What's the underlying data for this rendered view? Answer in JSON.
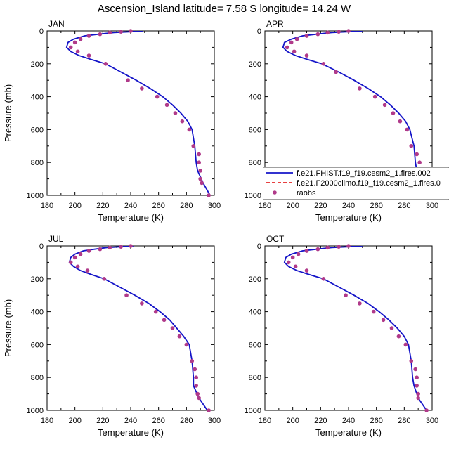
{
  "title": "Ascension_Island  latitude= 7.58 S longitude= 14.24 W",
  "xlabel": "Temperature (K)",
  "ylabel": "Pressure (mb)",
  "colors": {
    "model1": "#1414c8",
    "model2": "#e00000",
    "obs": "#b03a8a"
  },
  "legend": {
    "items": [
      {
        "label": "f.e21.FHIST.f19_f19.cesm2_1.fires.002",
        "style": "solid-line"
      },
      {
        "label": "f.e21.F2000climo.f19_f19.cesm2_1.fires.0",
        "style": "dashed-line"
      },
      {
        "label": "raobs",
        "style": "marker"
      }
    ]
  },
  "chart_data": [
    {
      "type": "line",
      "panel": "JAN",
      "xlim": [
        180,
        300
      ],
      "ylim": [
        1000,
        0
      ],
      "xticks": [
        180,
        200,
        220,
        240,
        260,
        280,
        300
      ],
      "yticks": [
        0,
        200,
        400,
        600,
        800,
        1000
      ],
      "series": [
        {
          "name": "f.e21.FHIST.f19_f19.cesm2_1.fires.002",
          "x": [
            249,
            240,
            228,
            217,
            207,
            199,
            195,
            194,
            197,
            203,
            212,
            222,
            233,
            244,
            254,
            263,
            270,
            276,
            281,
            284,
            286,
            287,
            288,
            292,
            297
          ],
          "y": [
            0,
            5,
            10,
            20,
            30,
            50,
            70,
            100,
            125,
            150,
            175,
            200,
            250,
            300,
            350,
            400,
            450,
            500,
            550,
            600,
            700,
            800,
            850,
            925,
            1000
          ]
        },
        {
          "name": "raobs",
          "mode": "markers",
          "x": [
            240,
            233,
            225,
            218,
            210,
            204,
            200,
            197,
            202,
            210,
            222,
            238,
            248,
            259,
            266,
            272,
            277,
            282,
            285,
            289,
            289,
            290,
            290,
            291,
            296
          ],
          "y": [
            0,
            5,
            10,
            20,
            30,
            50,
            70,
            100,
            125,
            150,
            200,
            300,
            350,
            400,
            450,
            500,
            550,
            600,
            700,
            750,
            800,
            850,
            900,
            925,
            1000
          ]
        }
      ]
    },
    {
      "type": "line",
      "panel": "APR",
      "xlim": [
        180,
        300
      ],
      "ylim": [
        1000,
        0
      ],
      "xticks": [
        180,
        200,
        220,
        240,
        260,
        280,
        300
      ],
      "yticks": [
        0,
        200,
        400,
        600,
        800,
        1000
      ],
      "series": [
        {
          "name": "f.e21.FHIST.f19_f19.cesm2_1.fires.002",
          "x": [
            250,
            240,
            228,
            217,
            207,
            199,
            194,
            193,
            196,
            202,
            211,
            221,
            233,
            244,
            254,
            263,
            270,
            276,
            281,
            284,
            287,
            288,
            289,
            293,
            299
          ],
          "y": [
            0,
            5,
            10,
            20,
            30,
            50,
            70,
            100,
            125,
            150,
            175,
            200,
            250,
            300,
            350,
            400,
            450,
            500,
            550,
            600,
            700,
            800,
            850,
            925,
            1000
          ]
        },
        {
          "name": "raobs",
          "mode": "markers",
          "x": [
            240,
            233,
            225,
            218,
            210,
            203,
            199,
            196,
            201,
            210,
            222,
            231,
            248,
            259,
            266,
            272,
            277,
            282,
            285,
            289,
            291,
            292
          ],
          "y": [
            0,
            5,
            10,
            20,
            30,
            50,
            70,
            100,
            125,
            150,
            200,
            250,
            350,
            400,
            450,
            500,
            550,
            600,
            700,
            750,
            800,
            850
          ]
        }
      ]
    },
    {
      "type": "line",
      "panel": "JUL",
      "xlim": [
        180,
        300
      ],
      "ylim": [
        1000,
        0
      ],
      "xticks": [
        180,
        200,
        220,
        240,
        260,
        280,
        300
      ],
      "yticks": [
        0,
        200,
        400,
        600,
        800,
        1000
      ],
      "series": [
        {
          "name": "f.e21.FHIST.f19_f19.cesm2_1.fires.002",
          "x": [
            242,
            233,
            223,
            214,
            206,
            200,
            197,
            196,
            199,
            204,
            212,
            221,
            232,
            243,
            253,
            261,
            268,
            273,
            278,
            282,
            284,
            285,
            285,
            289,
            295
          ],
          "y": [
            0,
            5,
            10,
            20,
            30,
            50,
            70,
            100,
            125,
            150,
            175,
            200,
            250,
            300,
            350,
            400,
            450,
            500,
            550,
            600,
            700,
            800,
            850,
            925,
            1000
          ]
        },
        {
          "name": "raobs",
          "mode": "markers",
          "x": [
            240,
            233,
            225,
            218,
            210,
            204,
            200,
            197,
            202,
            209,
            221,
            237,
            248,
            258,
            264,
            270,
            275,
            280,
            284,
            286,
            287,
            287,
            288,
            289,
            296
          ],
          "y": [
            0,
            5,
            10,
            20,
            30,
            50,
            70,
            100,
            125,
            150,
            200,
            300,
            350,
            400,
            450,
            500,
            550,
            600,
            700,
            750,
            800,
            850,
            900,
            925,
            1000
          ]
        }
      ]
    },
    {
      "type": "line",
      "panel": "OCT",
      "xlim": [
        180,
        300
      ],
      "ylim": [
        1000,
        0
      ],
      "xticks": [
        180,
        200,
        220,
        240,
        260,
        280,
        300
      ],
      "yticks": [
        0,
        200,
        400,
        600,
        800,
        1000
      ],
      "series": [
        {
          "name": "f.e21.FHIST.f19_f19.cesm2_1.fires.002",
          "x": [
            250,
            240,
            228,
            217,
            207,
            199,
            195,
            194,
            197,
            203,
            212,
            222,
            233,
            244,
            254,
            262,
            269,
            275,
            280,
            283,
            285,
            286,
            287,
            290,
            296
          ],
          "y": [
            0,
            5,
            10,
            20,
            30,
            50,
            70,
            100,
            125,
            150,
            175,
            200,
            250,
            300,
            350,
            400,
            450,
            500,
            550,
            600,
            700,
            800,
            850,
            925,
            1000
          ]
        },
        {
          "name": "raobs",
          "mode": "markers",
          "x": [
            240,
            233,
            225,
            218,
            210,
            204,
            200,
            197,
            202,
            210,
            222,
            238,
            248,
            258,
            265,
            271,
            276,
            281,
            285,
            288,
            289,
            289,
            290,
            290,
            296
          ],
          "y": [
            0,
            5,
            10,
            20,
            30,
            50,
            70,
            100,
            125,
            150,
            200,
            300,
            350,
            400,
            450,
            500,
            550,
            600,
            700,
            750,
            800,
            850,
            900,
            925,
            1000
          ]
        }
      ]
    }
  ]
}
